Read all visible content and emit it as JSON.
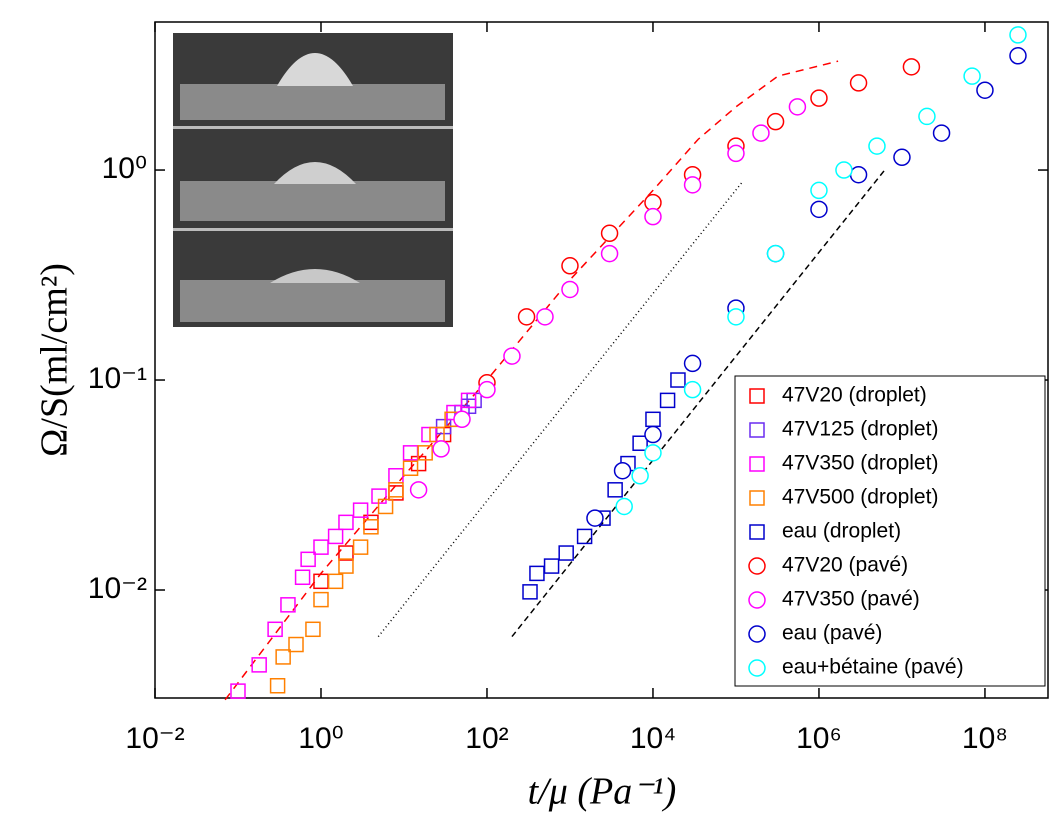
{
  "chart_data": {
    "type": "scatter",
    "xscale": "log",
    "yscale": "log",
    "xlabel": "t/μ (Pa⁻¹)",
    "ylabel": "Ω/S(ml/cm²)",
    "xlim": [
      0.01,
      575000000
    ],
    "ylim": [
      0.00306,
      5.07
    ],
    "xticks": [
      {
        "value": 0.01,
        "label": "10⁻²"
      },
      {
        "value": 1,
        "label": "10⁰"
      },
      {
        "value": 100,
        "label": "10²"
      },
      {
        "value": 10000,
        "label": "10⁴"
      },
      {
        "value": 1000000,
        "label": "10⁶"
      },
      {
        "value": 100000000,
        "label": "10⁸"
      }
    ],
    "yticks": [
      {
        "value": 0.01,
        "label": "10⁻²"
      },
      {
        "value": 0.1,
        "label": "10⁻¹"
      },
      {
        "value": 1,
        "label": "10⁰"
      }
    ],
    "legend": "lower right",
    "series": [
      {
        "name": "47V20 (droplet)",
        "color": "#ff0000",
        "marker": "square",
        "x": [
          1,
          2,
          4,
          8,
          15,
          30
        ],
        "values": [
          0.011,
          0.015,
          0.021,
          0.029,
          0.04,
          0.055
        ]
      },
      {
        "name": "47V125 (droplet)",
        "color": "#6a2cf0",
        "marker": "square",
        "x": [
          30,
          40,
          50,
          60,
          70
        ],
        "values": [
          0.06,
          0.065,
          0.07,
          0.075,
          0.08
        ]
      },
      {
        "name": "47V350 (droplet)",
        "color": "#ff00ff",
        "marker": "square",
        "x": [
          0.1,
          0.18,
          0.28,
          0.4,
          0.6,
          0.7,
          1,
          1.5,
          2,
          3,
          5,
          8,
          12,
          20,
          40,
          60
        ],
        "values": [
          0.0033,
          0.0044,
          0.0065,
          0.0085,
          0.0115,
          0.014,
          0.016,
          0.018,
          0.021,
          0.024,
          0.028,
          0.035,
          0.045,
          0.055,
          0.07,
          0.08
        ]
      },
      {
        "name": "47V500 (droplet)",
        "color": "#ff8000",
        "marker": "square",
        "x": [
          0.3,
          0.35,
          0.5,
          0.8,
          1,
          1.5,
          2,
          3,
          4,
          6,
          8,
          12,
          18,
          25,
          38
        ],
        "values": [
          0.0035,
          0.0048,
          0.0055,
          0.0065,
          0.009,
          0.011,
          0.013,
          0.016,
          0.02,
          0.025,
          0.03,
          0.038,
          0.045,
          0.055,
          0.065
        ]
      },
      {
        "name": "eau (droplet)",
        "color": "#0000cc",
        "marker": "square",
        "x": [
          330,
          400,
          600,
          900,
          1500,
          2500,
          3500,
          5000,
          7000,
          10000,
          15000,
          20000
        ],
        "values": [
          0.0098,
          0.012,
          0.013,
          0.015,
          0.018,
          0.022,
          0.03,
          0.04,
          0.05,
          0.065,
          0.08,
          0.1
        ]
      },
      {
        "name": "47V20 (pavé)",
        "color": "#ff0000",
        "marker": "circle",
        "x": [
          100,
          300,
          1000,
          3000,
          10000,
          30000,
          100000,
          300000,
          1000000,
          3000000,
          13000000
        ],
        "values": [
          0.097,
          0.2,
          0.35,
          0.5,
          0.7,
          0.95,
          1.3,
          1.7,
          2.2,
          2.6,
          3.1
        ]
      },
      {
        "name": "47V350 (pavé)",
        "color": "#ff00ff",
        "marker": "circle",
        "x": [
          15,
          28,
          50,
          100,
          200,
          500,
          1000,
          3000,
          10000,
          30000,
          100000,
          200000,
          550000
        ],
        "values": [
          0.03,
          0.047,
          0.065,
          0.09,
          0.13,
          0.2,
          0.27,
          0.4,
          0.6,
          0.85,
          1.2,
          1.5,
          2.0
        ]
      },
      {
        "name": "eau (pavé)",
        "color": "#0000cc",
        "marker": "circle",
        "x": [
          2000,
          4300,
          10000,
          30000,
          100000,
          300000,
          1000000,
          3000000,
          10000000,
          30000000,
          100000000,
          250000000
        ],
        "values": [
          0.022,
          0.037,
          0.055,
          0.12,
          0.22,
          0.4,
          0.65,
          0.95,
          1.15,
          1.5,
          2.4,
          3.5
        ]
      },
      {
        "name": "eau+bétaine (pavé)",
        "color": "#00ffff",
        "marker": "circle",
        "x": [
          4500,
          7000,
          10000,
          30000,
          100000,
          300000,
          1000000,
          2000000,
          5000000,
          20000000,
          70000000,
          250000000
        ],
        "values": [
          0.025,
          0.035,
          0.045,
          0.09,
          0.2,
          0.4,
          0.8,
          1.0,
          1.3,
          1.8,
          2.8,
          4.4
        ]
      }
    ],
    "lines": [
      {
        "color": "#ff0000",
        "dash": "8,6",
        "x": [
          0.07,
          1,
          10,
          100,
          1000,
          10000,
          35000,
          100000,
          320000,
          1700000
        ],
        "values": [
          0.003,
          0.012,
          0.035,
          0.1,
          0.3,
          0.8,
          1.4,
          2.0,
          2.8,
          3.3
        ]
      },
      {
        "color": "#000000",
        "dash": "1,3",
        "x": [
          4.9,
          120000
        ],
        "values": [
          0.006,
          0.88
        ]
      },
      {
        "color": "#000000",
        "dash": "6,4",
        "x": [
          200,
          6200000
        ],
        "values": [
          0.006,
          1.0
        ]
      }
    ]
  }
}
